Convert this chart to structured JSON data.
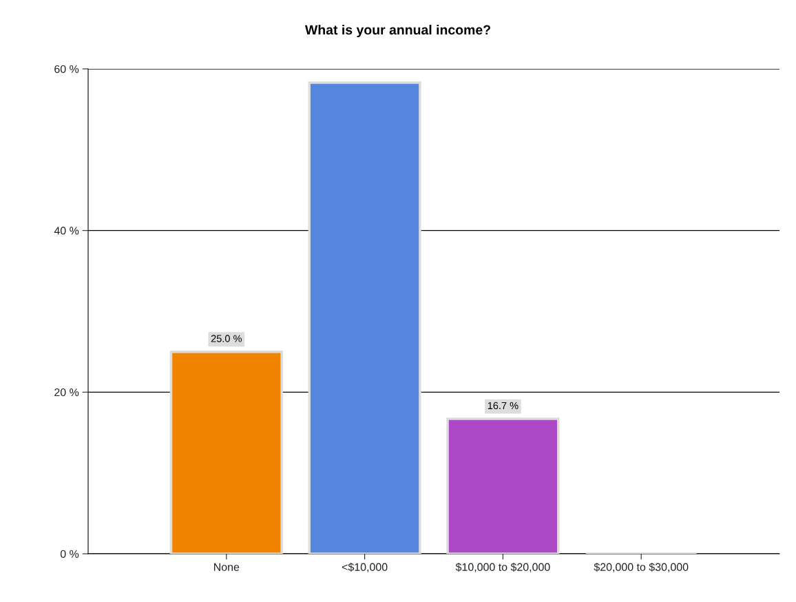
{
  "chart_data": {
    "type": "bar",
    "title": "What is your annual income?",
    "categories": [
      "None",
      "<$10,000",
      "$10,000 to $20,000",
      "$20,000 to $30,000"
    ],
    "values": [
      25.0,
      58.3,
      16.7,
      0
    ],
    "value_labels": [
      "25.0 %",
      null,
      "16.7 %",
      null
    ],
    "colors": [
      "#f08400",
      "#5586dd",
      "#aa48c6",
      "#d0d0d0"
    ],
    "ylim": [
      0,
      60
    ],
    "yticks": [
      {
        "value": 0,
        "label": "0 %"
      },
      {
        "value": 20,
        "label": "20 %"
      },
      {
        "value": 40,
        "label": "40 %"
      },
      {
        "value": 60,
        "label": "60 %"
      }
    ],
    "grid": "y",
    "legend": false
  }
}
